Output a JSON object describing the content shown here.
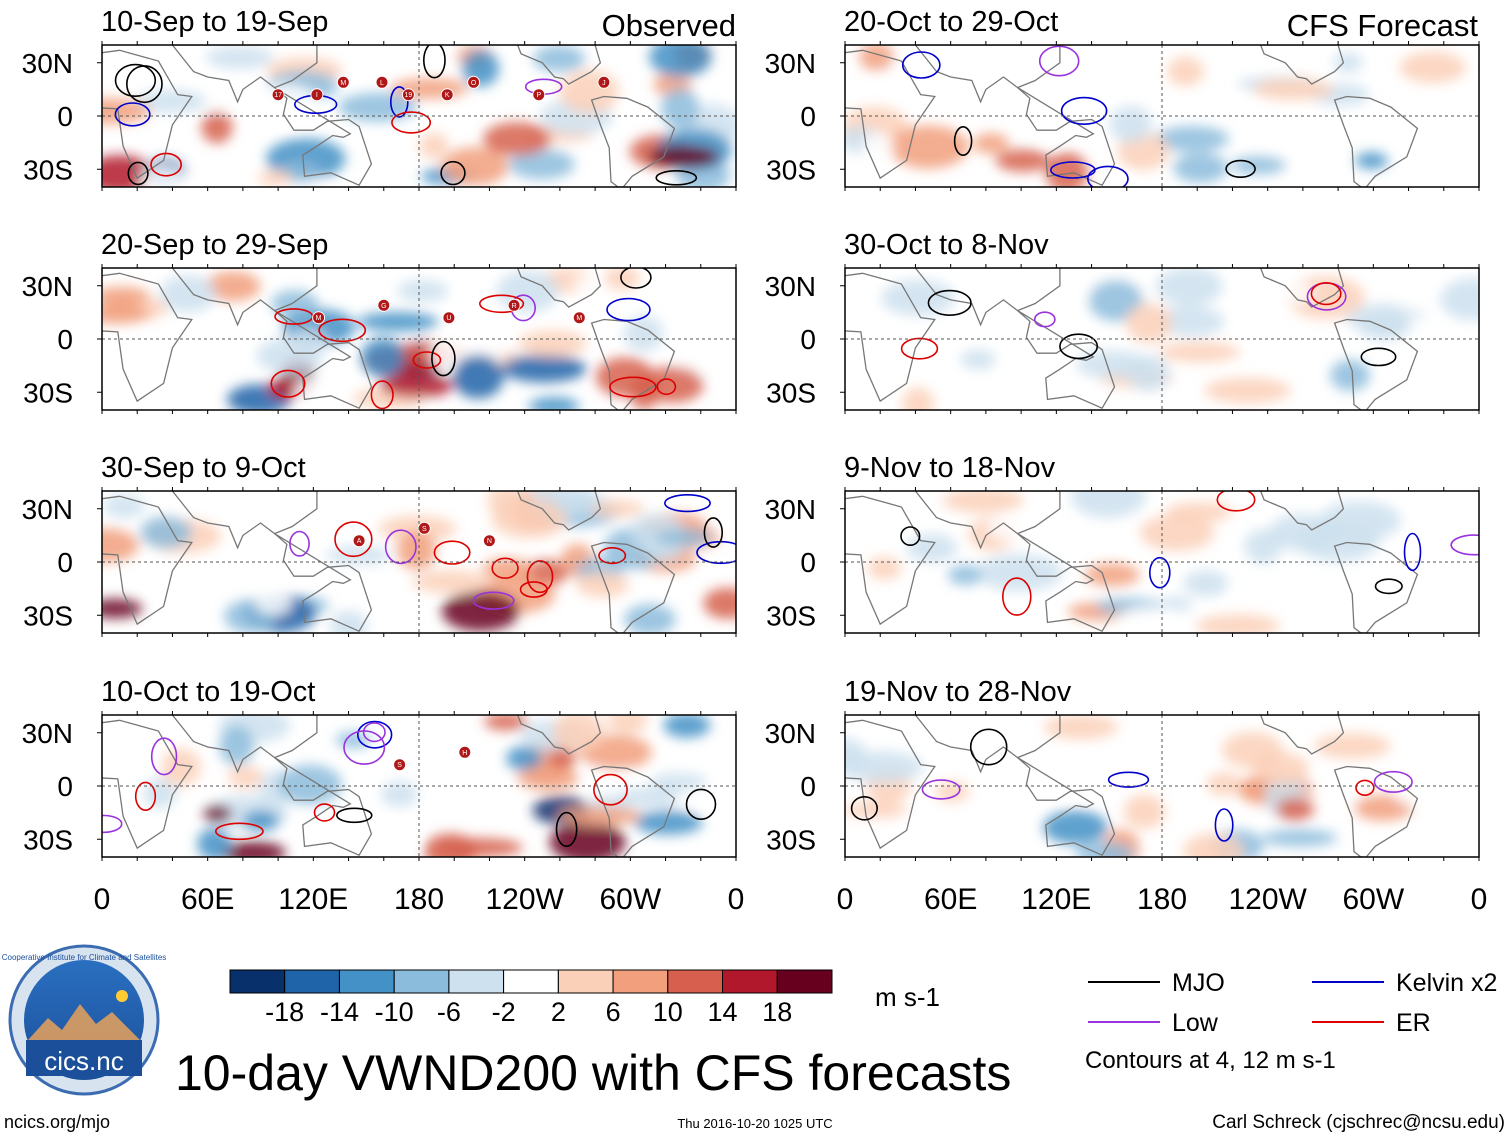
{
  "chart_data": {
    "type": "heatmap",
    "title": "10-day VWND200 with CFS forecasts",
    "units": "m s-1",
    "column_titles": {
      "observed": "Observed",
      "forecast": "CFS Forecast"
    },
    "x_tick_labels": [
      "0",
      "60E",
      "120E",
      "180",
      "120W",
      "60W",
      "0"
    ],
    "y_tick_labels": [
      "30N",
      "0",
      "30S"
    ],
    "x_range_deg_east": [
      0,
      360
    ],
    "y_range_deg_lat": [
      -40,
      40
    ],
    "panels": [
      {
        "period": "10-Sep to 19-Sep",
        "source": "Observed"
      },
      {
        "period": "20-Sep to 29-Sep",
        "source": "Observed"
      },
      {
        "period": "30-Sep to 9-Oct",
        "source": "Observed"
      },
      {
        "period": "10-Oct to 19-Oct",
        "source": "Observed"
      },
      {
        "period": "20-Oct to 29-Oct",
        "source": "CFS Forecast"
      },
      {
        "period": "30-Oct to 8-Nov",
        "source": "CFS Forecast"
      },
      {
        "period": "9-Nov to 18-Nov",
        "source": "CFS Forecast"
      },
      {
        "period": "19-Nov to 28-Nov",
        "source": "CFS Forecast"
      }
    ],
    "colorbar": {
      "levels": [
        "-18",
        "-14",
        "-10",
        "-6",
        "-2",
        "2",
        "6",
        "10",
        "14",
        "18"
      ],
      "colors": [
        "#08306b",
        "#1f63a8",
        "#4391c6",
        "#8cbcdc",
        "#cde1ef",
        "#ffffff",
        "#fbd0b9",
        "#f19f7c",
        "#d6604d",
        "#b2182b",
        "#67001f"
      ]
    },
    "legend": [
      {
        "label": "MJO",
        "color": "#000000"
      },
      {
        "label": "Kelvin x2",
        "color": "#0000cc"
      },
      {
        "label": "Low",
        "color": "#9933dd"
      },
      {
        "label": "ER",
        "color": "#dd0000"
      }
    ],
    "contour_note": "Contours at 4, 12 m s-1",
    "storm_markers": [
      [
        "17",
        "M",
        "19",
        "O",
        "P",
        "J",
        "I",
        "L",
        "K"
      ],
      [
        "M",
        "G",
        "U",
        "R",
        "M"
      ],
      [
        "A",
        "S",
        "N"
      ],
      [
        "S",
        "H"
      ]
    ]
  },
  "footer": {
    "left": "ncics.org/mjo",
    "center": "Thu 2016-10-20 1025 UTC",
    "right": "Carl Schreck (cjschrec@ncsu.edu)"
  },
  "logo": {
    "text": "cics.nc",
    "ring_text": "Cooperative Institute for Climate and Satellites"
  }
}
